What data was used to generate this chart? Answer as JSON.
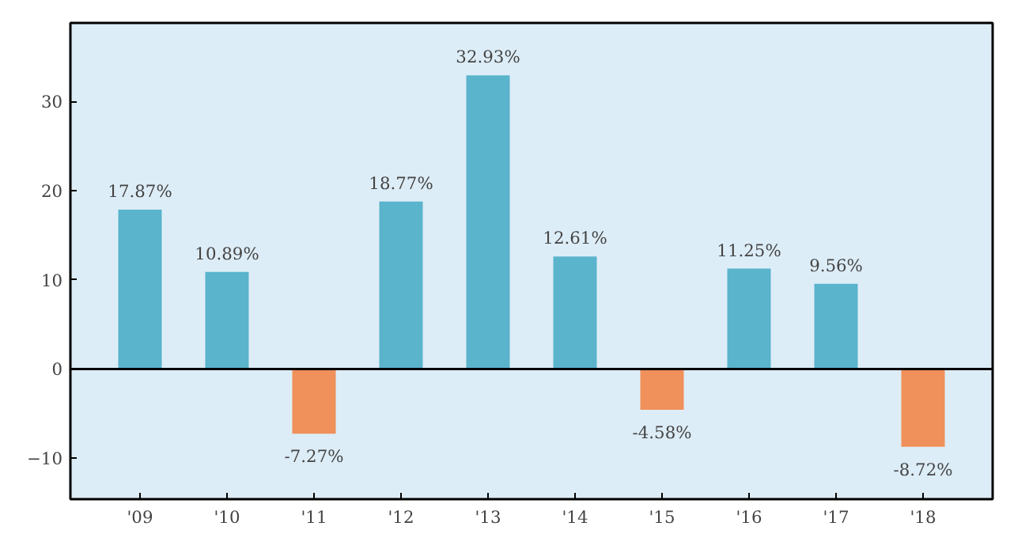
{
  "chart_data": {
    "type": "bar",
    "categories": [
      "'09",
      "'10",
      "'11",
      "'12",
      "'13",
      "'14",
      "'15",
      "'16",
      "'17",
      "'18"
    ],
    "values": [
      17.87,
      10.89,
      -7.27,
      18.77,
      32.93,
      12.61,
      -4.58,
      11.25,
      9.56,
      -8.72
    ],
    "colors": [
      "#5ab4cc",
      "#5ab4cc",
      "#f0905a",
      "#5ab4cc",
      "#5ab4cc",
      "#5ab4cc",
      "#f0905a",
      "#5ab4cc",
      "#5ab4cc",
      "#f0905a"
    ],
    "value_labels": [
      "17.87%",
      "10.89%",
      "-7.27%",
      "18.77%",
      "32.93%",
      "12.61%",
      "-4.58%",
      "11.25%",
      "9.56%",
      "-8.72%"
    ],
    "ylim": [
      -14.6,
      38.8
    ],
    "yticks": [
      -10,
      0,
      10,
      20,
      30
    ],
    "ref_lines": [
      {
        "axis": "y",
        "value": 0,
        "label": null,
        "color": "#000000"
      }
    ],
    "grid": false
  }
}
